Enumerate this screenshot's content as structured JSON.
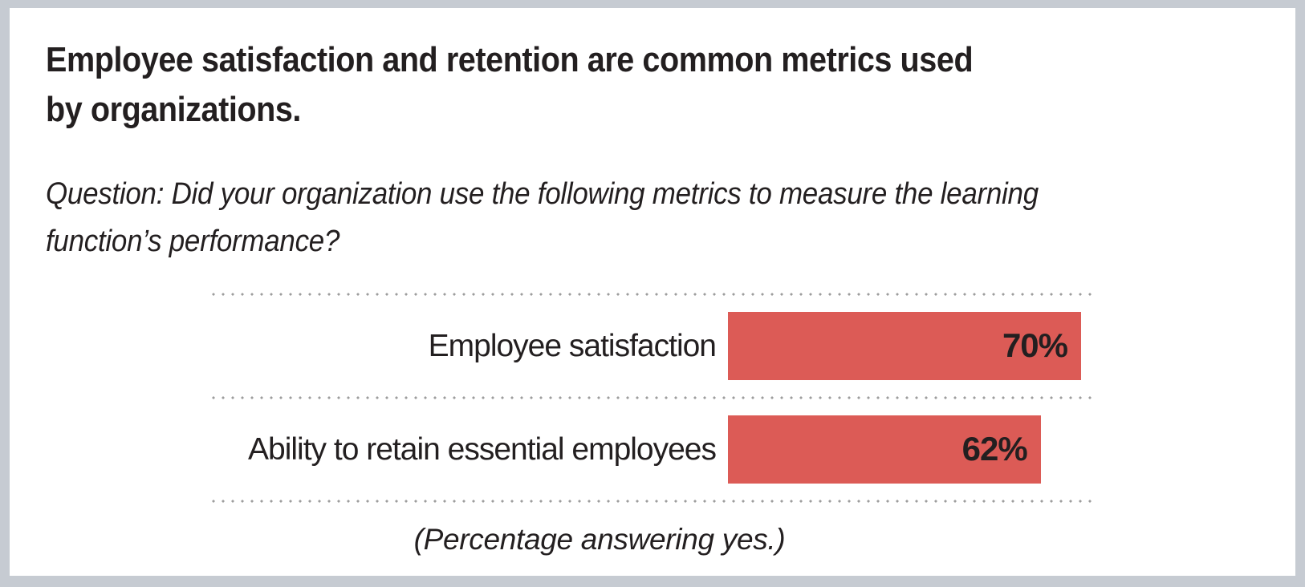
{
  "header": {
    "title": "Employee satisfaction and retention are common metrics used\nby organizations.",
    "question": "Question: Did your organization use the following metrics to measure the learning\nfunction’s performance?"
  },
  "chart_data": {
    "type": "bar",
    "orientation": "horizontal",
    "title": "Employee satisfaction and retention are common metrics used by organizations.",
    "subtitle": "Question: Did your organization use the following metrics to measure the learning function’s performance?",
    "categories": [
      "Employee satisfaction",
      "Ability to retain essential employees"
    ],
    "values": [
      70,
      62
    ],
    "value_labels": [
      "70%",
      "62%"
    ],
    "unit": "percent",
    "xlim": [
      0,
      70
    ],
    "grid": "dotted horizontal separators between rows",
    "value_label_position": "inside-right",
    "caption": "(Percentage answering yes.)"
  },
  "theme": {
    "bar_color": "#dc5b56",
    "frame_color": "#c6cbd2",
    "panel_color": "#ffffff",
    "text_color": "#231f20",
    "dot_color": "#9d9d9d"
  }
}
